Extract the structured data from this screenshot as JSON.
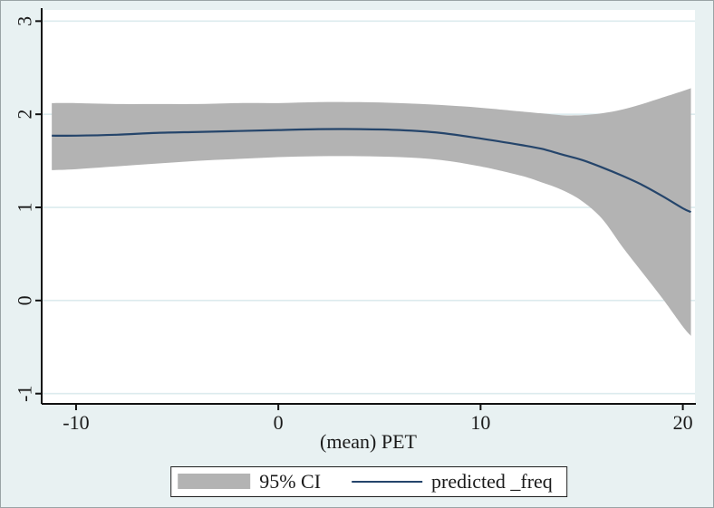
{
  "figure": {
    "background_color": "#e8f1f2",
    "plot_background": "#ffffff",
    "grid_color": "#dcebee",
    "axis_color": "#111111",
    "text_color": "#1a1a1a",
    "border_color": "#9aa4a6"
  },
  "axis": {
    "x_title": "(mean) PET"
  },
  "legend": {
    "ci_label": "95% CI",
    "line_label": "predicted _freq",
    "ci_color": "#b3b3b3",
    "line_color": "#25456b"
  },
  "chart_data": {
    "type": "line",
    "title": "",
    "xlabel": "(mean) PET",
    "ylabel": "",
    "xlim": [
      -11.7,
      20.6
    ],
    "ylim": [
      -1.11,
      3.12
    ],
    "x_ticks": [
      -10,
      0,
      10,
      20
    ],
    "y_ticks": [
      -1,
      0,
      1,
      2,
      3
    ],
    "grid": "horizontal",
    "legend_position": "bottom-center",
    "x": [
      -11.2,
      -10,
      -8,
      -6,
      -4,
      -2,
      0,
      2,
      4,
      6,
      8,
      10,
      12,
      13,
      14,
      15,
      16,
      17,
      18,
      19,
      20,
      20.4
    ],
    "series": [
      {
        "name": "95% CI",
        "render": "band",
        "color": "#b3b3b3",
        "upper": [
          2.12,
          2.12,
          2.11,
          2.11,
          2.11,
          2.12,
          2.12,
          2.13,
          2.13,
          2.12,
          2.1,
          2.07,
          2.03,
          2.01,
          1.99,
          1.99,
          2.01,
          2.05,
          2.11,
          2.18,
          2.25,
          2.28
        ],
        "lower": [
          1.4,
          1.41,
          1.44,
          1.47,
          1.5,
          1.52,
          1.54,
          1.55,
          1.55,
          1.54,
          1.51,
          1.44,
          1.34,
          1.27,
          1.19,
          1.07,
          0.88,
          0.58,
          0.3,
          0.02,
          -0.28,
          -0.38
        ]
      },
      {
        "name": "predicted _freq",
        "render": "line",
        "color": "#25456b",
        "values": [
          1.77,
          1.77,
          1.78,
          1.8,
          1.81,
          1.82,
          1.83,
          1.84,
          1.84,
          1.83,
          1.8,
          1.74,
          1.67,
          1.63,
          1.57,
          1.51,
          1.43,
          1.34,
          1.24,
          1.12,
          0.99,
          0.95
        ]
      }
    ]
  }
}
